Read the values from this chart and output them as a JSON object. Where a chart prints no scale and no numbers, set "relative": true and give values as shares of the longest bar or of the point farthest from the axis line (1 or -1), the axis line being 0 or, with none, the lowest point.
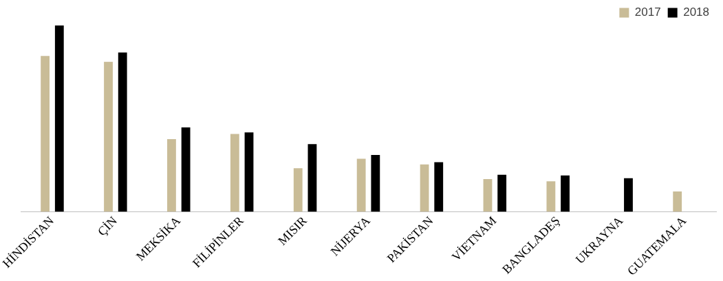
{
  "chart_data": {
    "type": "bar",
    "relative": true,
    "legend": "top right",
    "grid": false,
    "categories": [
      "HİNDİSTAN",
      "ÇİN",
      "MEKSİKA",
      "FİLİPİNLER",
      "MISIR",
      "NİJERYA",
      "PAKİSTAN",
      "VİETNAM",
      "BANGLADEŞ",
      "UKRAYNA",
      "GUATEMALA"
    ],
    "series": [
      {
        "name": "2017",
        "color": "#c9bc97",
        "values": [
          0.836,
          0.805,
          0.39,
          0.418,
          0.234,
          0.285,
          0.254,
          0.176,
          0.164,
          null,
          0.109
        ]
      },
      {
        "name": "2018",
        "color": "#000000",
        "values": [
          1,
          0.855,
          0.453,
          0.426,
          0.363,
          0.305,
          0.266,
          0.199,
          0.195,
          0.18,
          null
        ]
      }
    ]
  }
}
